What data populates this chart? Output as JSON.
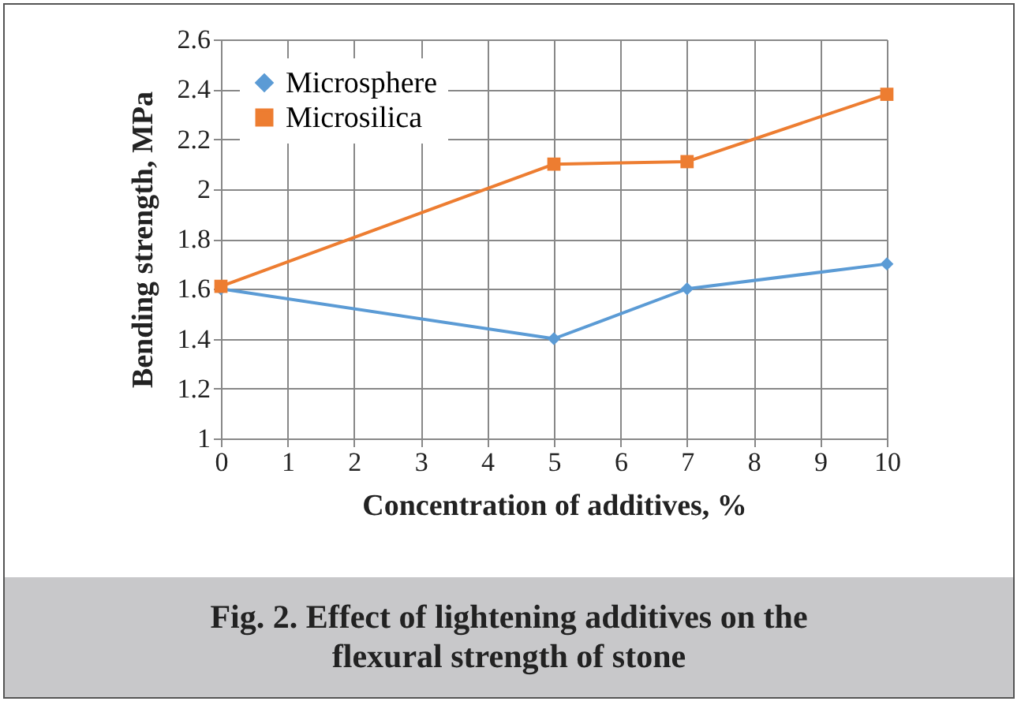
{
  "chart_data": {
    "type": "line",
    "title": "Fig. 2. Effect of lightening additives on the flexural strength of stone",
    "xlabel": "Concentration of additives, %",
    "ylabel": "Bending strength, MPa",
    "x": [
      0,
      5,
      7,
      10
    ],
    "series": [
      {
        "name": "Microsphere",
        "color": "#5b9bd5",
        "marker": "diamond",
        "values": [
          1.6,
          1.4,
          1.6,
          1.7
        ]
      },
      {
        "name": "Microsilica",
        "color": "#ed7d31",
        "marker": "square",
        "values": [
          1.61,
          2.1,
          2.11,
          2.38
        ]
      }
    ],
    "xlim": [
      0,
      10
    ],
    "xticks": [
      0,
      1,
      2,
      3,
      4,
      5,
      6,
      7,
      8,
      9,
      10
    ],
    "ylim": [
      1,
      2.6
    ],
    "yticks": [
      1,
      1.2,
      1.4,
      1.6,
      1.8,
      2,
      2.2,
      2.4,
      2.6
    ],
    "grid": true,
    "legend": "top left",
    "line_style": "solid"
  }
}
